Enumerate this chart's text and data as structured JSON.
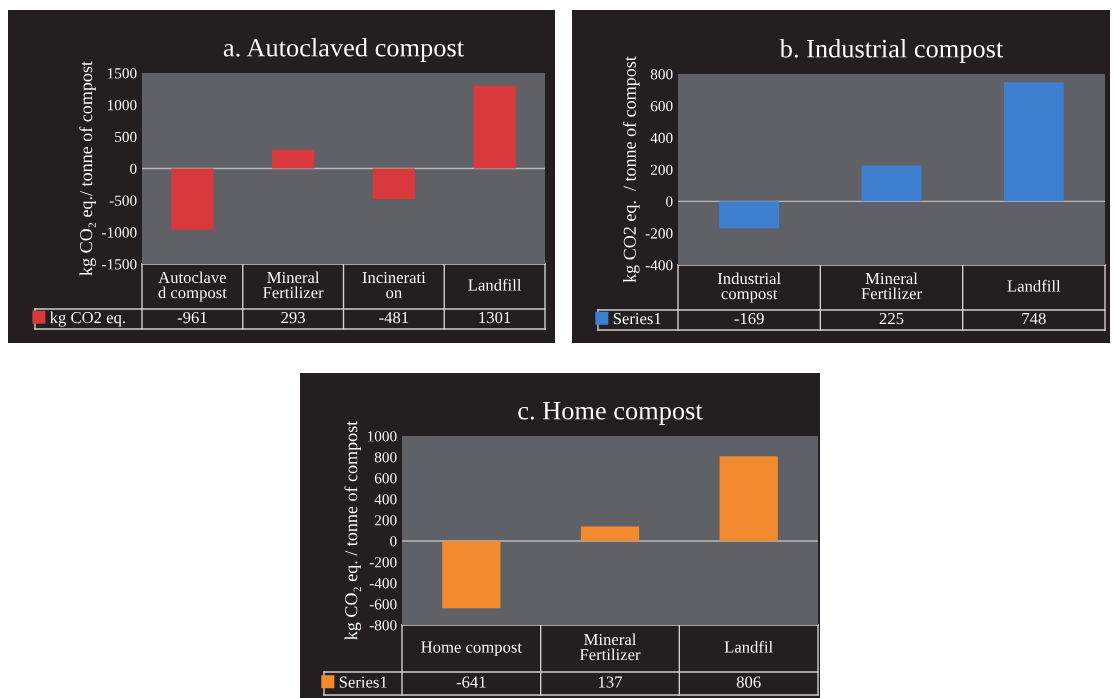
{
  "chart_data": [
    {
      "type": "bar",
      "title": "a. Autoclaved compost",
      "ylabel": "kg CO₂ eq./ tonne of compost",
      "categories": [
        "Autoclave\nd compost",
        "Mineral\nFertilizer",
        "Incinerati\non",
        "Landfill"
      ],
      "series": [
        {
          "name": "kg CO2 eq.",
          "color": "#d9393c",
          "values": [
            -961,
            293,
            -481,
            1301
          ]
        }
      ],
      "ylim": [
        -1500,
        1500
      ],
      "yticks": [
        -1500,
        -1000,
        -500,
        0,
        500,
        1000,
        1500
      ],
      "ref_lines": [
        {
          "axis": "y",
          "value": 0,
          "color": "#b8b8b8"
        }
      ],
      "data_labels": true,
      "legend": "bottom",
      "grid": false
    },
    {
      "type": "bar",
      "title": "b. Industrial compost",
      "ylabel": "kg CO2 eq.  / tonne of compost",
      "categories": [
        "Industrial\ncompost",
        "Mineral\nFertilizer",
        "Landfill"
      ],
      "series": [
        {
          "name": "Series1",
          "color": "#3f7fd0",
          "values": [
            -169,
            225,
            748
          ]
        }
      ],
      "ylim": [
        -400,
        800
      ],
      "yticks": [
        -400,
        -200,
        0,
        200,
        400,
        600,
        800
      ],
      "ref_lines": [
        {
          "axis": "y",
          "value": 0,
          "color": "#b8b8b8"
        }
      ],
      "data_labels": true,
      "legend": "bottom",
      "grid": false
    },
    {
      "type": "bar",
      "title": "c. Home compost",
      "ylabel": "kg CO₂ eq. / tonne of compost",
      "categories": [
        "Home compost",
        "Mineral\nFertilizer",
        "Landfil"
      ],
      "series": [
        {
          "name": "Series1",
          "color": "#f28a30",
          "values": [
            -641,
            137,
            806
          ]
        }
      ],
      "ylim": [
        -800,
        1000
      ],
      "yticks": [
        -800,
        -600,
        -400,
        -200,
        0,
        200,
        400,
        600,
        800,
        1000
      ],
      "ref_lines": [
        {
          "axis": "y",
          "value": 0,
          "color": "#b8b8b8"
        }
      ],
      "data_labels": true,
      "legend": "bottom",
      "grid": false
    }
  ]
}
